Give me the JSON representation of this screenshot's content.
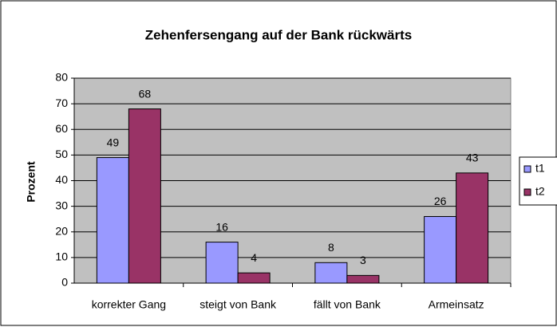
{
  "chart_data": {
    "type": "bar",
    "title": "Zehenfersengang auf der Bank rückwärts",
    "y_label": "Prozent",
    "categories": [
      "korrekter Gang",
      "steigt von Bank",
      "fällt von Bank",
      "Armeinsatz"
    ],
    "series": [
      {
        "name": "t1",
        "color": "#9999ff",
        "values": [
          49,
          16,
          8,
          26
        ]
      },
      {
        "name": "t2",
        "color": "#993366",
        "values": [
          68,
          4,
          3,
          43
        ]
      }
    ],
    "ylim": [
      0,
      80
    ],
    "yticks": [
      0,
      10,
      20,
      30,
      40,
      50,
      60,
      70,
      80
    ],
    "grid": true,
    "plot_background": "#c0c0c0",
    "legend": "right"
  }
}
